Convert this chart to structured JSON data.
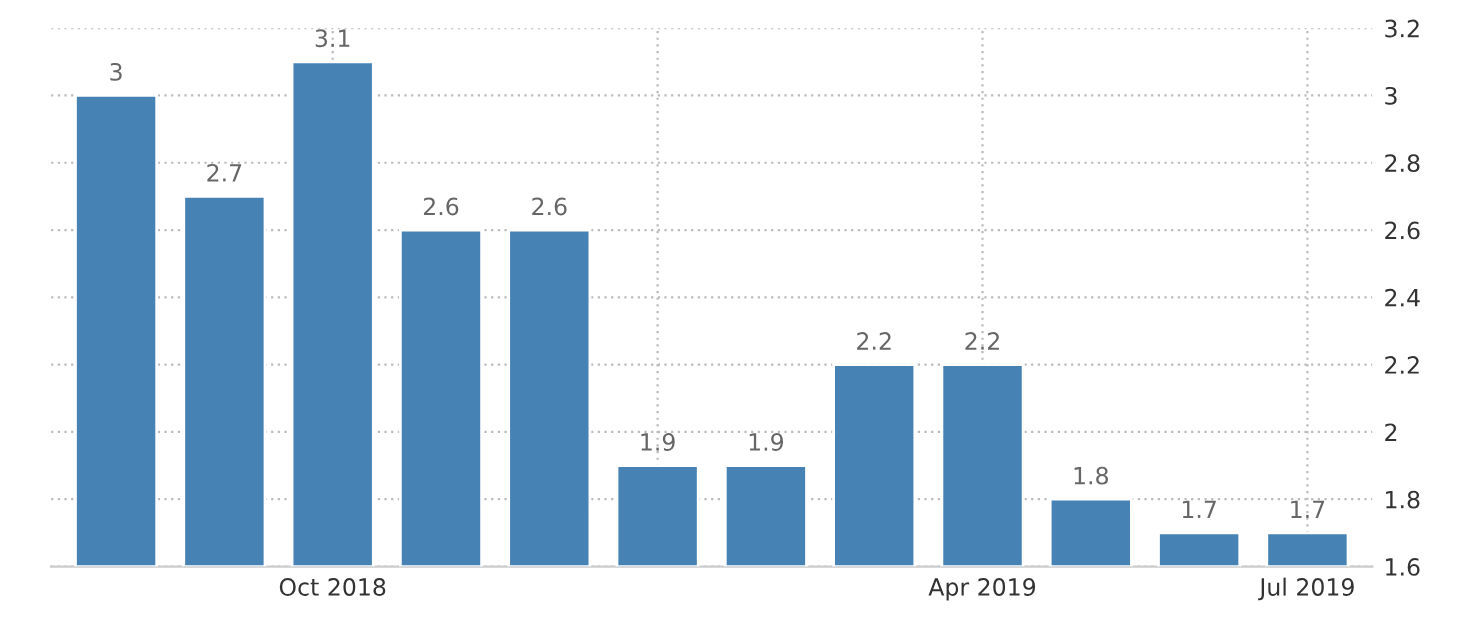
{
  "chart_data": {
    "type": "bar",
    "categories": [
      null,
      null,
      "Oct 2018",
      null,
      null,
      null,
      null,
      null,
      "Apr 2019",
      null,
      null,
      "Jul 2019"
    ],
    "values": [
      3,
      2.7,
      3.1,
      2.6,
      2.6,
      1.9,
      1.9,
      2.2,
      2.2,
      1.8,
      1.7,
      1.7
    ],
    "color": "#4682b4",
    "ylim": [
      1.6,
      3.2
    ],
    "yticks": [
      1.6,
      1.8,
      2,
      2.2,
      2.4,
      2.6,
      2.8,
      3,
      3.2
    ],
    "grid": true,
    "data_labels": true
  }
}
